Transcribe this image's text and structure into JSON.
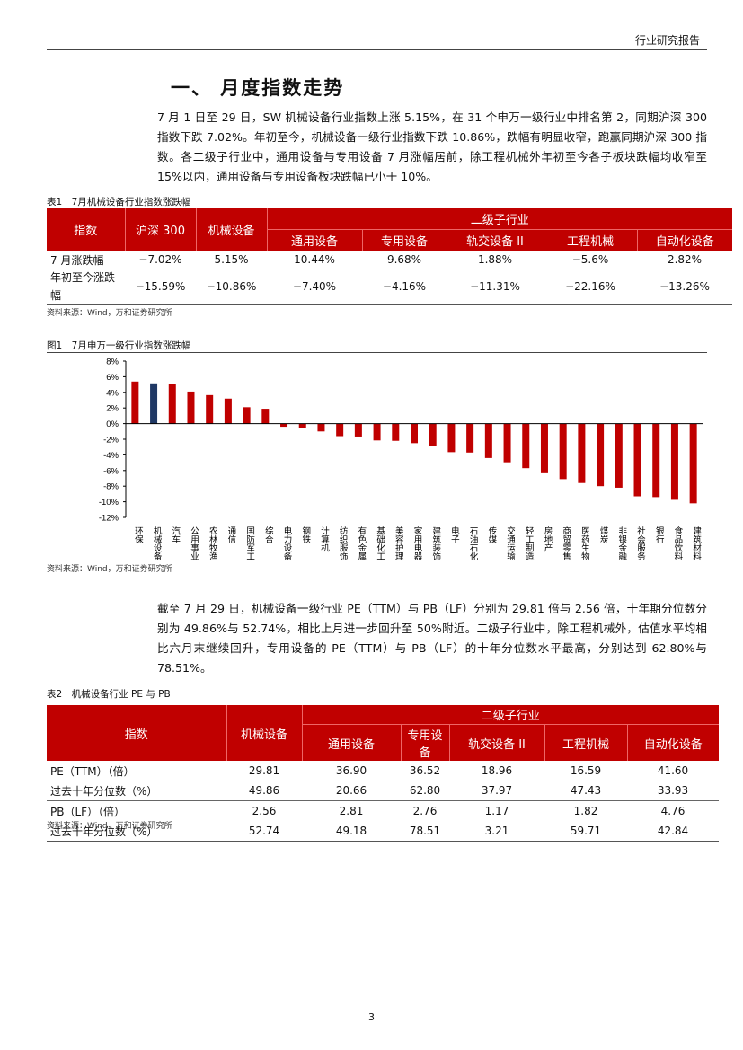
{
  "header": {
    "title": "行业研究报告"
  },
  "section": {
    "heading": "一、 月度指数走势"
  },
  "paragraph1": "7 月 1 日至 29 日，SW 机械设备行业指数上涨 5.15%，在 31 个申万一级行业中排名第 2，同期沪深 300 指数下跌 7.02%。年初至今，机械设备一级行业指数下跌 10.86%，跌幅有明显收窄，跑赢同期沪深 300 指数。各二级子行业中，通用设备与专用设备 7 月涨幅居前，除工程机械外年初至今各子板块跌幅均收窄至 15%以内，通用设备与专用设备板块跌幅已小于 10%。",
  "table1": {
    "caption": "表1　7月机械设备行业指数涨跌幅",
    "headers": [
      "指数",
      "沪深 300",
      "机械设备",
      "二级子行业"
    ],
    "sub_headers": [
      "通用设备",
      "专用设备",
      "轨交设备 II",
      "工程机械",
      "自动化设备"
    ],
    "rows": [
      [
        "7 月涨跌幅",
        "−7.02%",
        "5.15%",
        "10.44%",
        "9.68%",
        "1.88%",
        "−5.6%",
        "2.82%"
      ],
      [
        "年初至今涨跌幅",
        "−15.59%",
        "−10.86%",
        "−7.40%",
        "−4.16%",
        "−11.31%",
        "−22.16%",
        "−13.26%"
      ]
    ],
    "source": "资料来源：Wind，万和证券研究所"
  },
  "figure1": {
    "caption": "图1　7月申万一级行业指数涨跌幅",
    "source": "资料来源：Wind，万和证券研究所"
  },
  "chart_data": {
    "type": "bar",
    "categories": [
      "环保",
      "机械设备",
      "汽车",
      "公用事业",
      "农林牧渔",
      "通信",
      "国防军工",
      "综合",
      "电力设备",
      "钢铁",
      "计算机",
      "纺织服饰",
      "有色金属",
      "基础化工",
      "美容护理",
      "家用电器",
      "建筑装饰",
      "电子",
      "石油石化",
      "传媒",
      "交通运输",
      "轻工制造",
      "房地产",
      "商贸零售",
      "医药生物",
      "煤炭",
      "非银金融",
      "社会服务",
      "银行",
      "食品饮料",
      "建筑材料"
    ],
    "values": [
      5.38,
      5.15,
      5.12,
      4.1,
      3.65,
      3.2,
      2.1,
      1.9,
      -0.4,
      -0.6,
      -1.0,
      -1.6,
      -1.65,
      -2.15,
      -2.2,
      -2.5,
      -2.85,
      -3.65,
      -3.7,
      -4.4,
      -4.95,
      -5.7,
      -6.35,
      -7.1,
      -7.6,
      -8.0,
      -8.2,
      -9.3,
      -9.4,
      -9.75,
      -10.2
    ],
    "unit": "%",
    "ylim": [
      -12,
      8
    ],
    "yticks": [
      "8%",
      "6%",
      "4%",
      "2%",
      "0%",
      "-2%",
      "-4%",
      "-6%",
      "-8%",
      "-10%",
      "-12%"
    ],
    "grid": false,
    "colors": {
      "default": "#c00000",
      "highlight": "#1f3864"
    },
    "highlight_category": "机械设备"
  },
  "paragraph2": "截至 7 月 29 日，机械设备一级行业 PE（TTM）与 PB（LF）分别为 29.81 倍与 2.56 倍，十年期分位数分别为 49.86%与 52.74%，相比上月进一步回升至 50%附近。二级子行业中，除工程机械外，估值水平均相比六月末继续回升，专用设备的 PE（TTM）与 PB（LF）的十年分位数水平最高，分别达到 62.80%与 78.51%。",
  "table2": {
    "caption": "表2　机械设备行业 PE 与 PB",
    "headers": [
      "指数",
      "机械设备",
      "二级子行业"
    ],
    "sub_headers": [
      "通用设备",
      "专用设备",
      "轨交设备 II",
      "工程机械",
      "自动化设备"
    ],
    "rows": [
      [
        "PE（TTM）（倍）",
        "29.81",
        "36.90",
        "36.52",
        "18.96",
        "16.59",
        "41.60"
      ],
      [
        "过去十年分位数（%）",
        "49.86",
        "20.66",
        "62.80",
        "37.97",
        "47.43",
        "33.93"
      ],
      [
        "PB（LF）（倍）",
        "2.56",
        "2.81",
        "2.76",
        "1.17",
        "1.82",
        "4.76"
      ],
      [
        "过去十年分位数（%）",
        "52.74",
        "49.18",
        "78.51",
        "3.21",
        "59.71",
        "42.84"
      ]
    ],
    "source": "资料来源：Wind，万和证券研究所"
  },
  "page_number": "3"
}
